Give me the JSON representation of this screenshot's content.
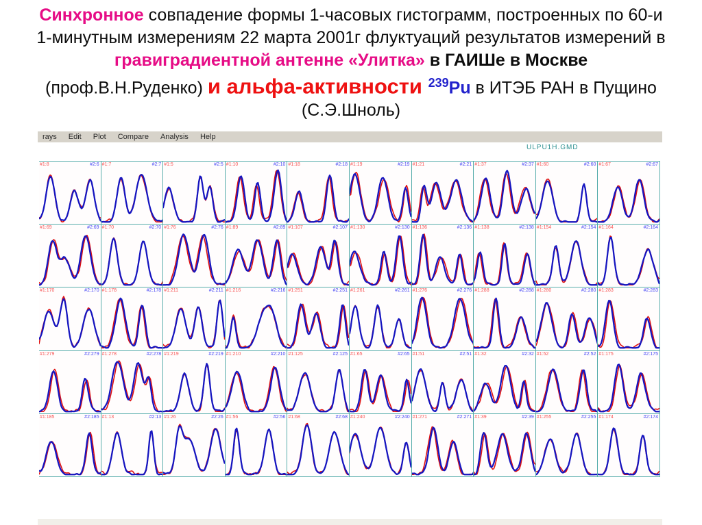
{
  "slide": {
    "title": {
      "seg_sync": "Синхронное",
      "seg_main1": " совпадение формы 1-часовых гистограмм, построенных по 60-и 1-минутным измерениям 22 марта 2001г флуктуаций результатов измерений в ",
      "seg_antenna": "гравиградиентной антенне «Улитка»",
      "seg_gaish": " в ГАИШе в Москве ",
      "seg_prof": "(проф.В.Н.Руденко) ",
      "seg_alpha": "и альфа-активности ",
      "seg_isotope_sup": "239",
      "seg_isotope": "Pu",
      "seg_iteb": " в ИТЭБ РАН в Пущино (С.Э.Шноль)"
    }
  },
  "app_window": {
    "menu_items": [
      "rays",
      "Edit",
      "Plot",
      "Compare",
      "Analysis",
      "Help"
    ],
    "file_label": "ULPU1H.GMD"
  },
  "histogram_grid": {
    "rows": 5,
    "cols": 10,
    "series": [
      {
        "name": "#1",
        "color": "#e01010",
        "meaning": "red curve"
      },
      {
        "name": "#2",
        "color": "#1515c0",
        "meaning": "blue curve"
      }
    ],
    "panels": [
      {
        "red": "#1:8",
        "blue": "#2:6"
      },
      {
        "red": "#1:7",
        "blue": "#2:7"
      },
      {
        "red": "#1:5",
        "blue": "#2:5"
      },
      {
        "red": "#1:10",
        "blue": "#2:10"
      },
      {
        "red": "#1:18",
        "blue": "#2:18"
      },
      {
        "red": "#1:19",
        "blue": "#2:19"
      },
      {
        "red": "#1:21",
        "blue": "#2:21"
      },
      {
        "red": "#1:37",
        "blue": "#2:37"
      },
      {
        "red": "#1:60",
        "blue": "#2:60"
      },
      {
        "red": "#1:67",
        "blue": "#2:67"
      },
      {
        "red": "#1:69",
        "blue": "#2:69"
      },
      {
        "red": "#1:70",
        "blue": "#2:70"
      },
      {
        "red": "#1:76",
        "blue": "#2:76"
      },
      {
        "red": "#1:89",
        "blue": "#2:89"
      },
      {
        "red": "#1:107",
        "blue": "#2:107"
      },
      {
        "red": "#1:130",
        "blue": "#2:130"
      },
      {
        "red": "#1:136",
        "blue": "#2:136"
      },
      {
        "red": "#1:138",
        "blue": "#2:138"
      },
      {
        "red": "#1:154",
        "blue": "#2:154"
      },
      {
        "red": "#1:164",
        "blue": "#2:164"
      },
      {
        "red": "#1:170",
        "blue": "#2:170"
      },
      {
        "red": "#1:178",
        "blue": "#2:178"
      },
      {
        "red": "#1:211",
        "blue": "#2:211"
      },
      {
        "red": "#1:216",
        "blue": "#2:216"
      },
      {
        "red": "#1:251",
        "blue": "#2:251"
      },
      {
        "red": "#1:261",
        "blue": "#2:261"
      },
      {
        "red": "#1:276",
        "blue": "#2:276"
      },
      {
        "red": "#1:288",
        "blue": "#2:288"
      },
      {
        "red": "#1:280",
        "blue": "#2:280"
      },
      {
        "red": "#1:283",
        "blue": "#2:283"
      },
      {
        "red": "#1:279",
        "blue": "#2:279"
      },
      {
        "red": "#1:278",
        "blue": "#2:278"
      },
      {
        "red": "#1:219",
        "blue": "#2:219"
      },
      {
        "red": "#1:210",
        "blue": "#2:210"
      },
      {
        "red": "#1:125",
        "blue": "#2:125"
      },
      {
        "red": "#1:65",
        "blue": "#2:65"
      },
      {
        "red": "#1:51",
        "blue": "#2:51"
      },
      {
        "red": "#1:32",
        "blue": "#2:32"
      },
      {
        "red": "#1:52",
        "blue": "#2:52"
      },
      {
        "red": "#1:175",
        "blue": "#2:175"
      },
      {
        "red": "#1:185",
        "blue": "#2:185"
      },
      {
        "red": "#1:13",
        "blue": "#2:13"
      },
      {
        "red": "#1:26",
        "blue": "#2:26"
      },
      {
        "red": "#1:56",
        "blue": "#2:56"
      },
      {
        "red": "#1:68",
        "blue": "#2:68"
      },
      {
        "red": "#1:240",
        "blue": "#2:240"
      },
      {
        "red": "#1:271",
        "blue": "#2:271"
      },
      {
        "red": "#1:39",
        "blue": "#2:39"
      },
      {
        "red": "#1:255",
        "blue": "#2:255"
      },
      {
        "red": "#1:174",
        "blue": "#2:174"
      }
    ]
  },
  "colors": {
    "title_pink": "#e60c86",
    "title_red": "#ee1111",
    "title_blue": "#2222cc",
    "curve_red": "#e01010",
    "curve_blue": "#1515c0",
    "grid_teal": "#55acaa",
    "menu_bar_bg": "#d7d3ca",
    "panel_label_red": "#f75454",
    "panel_label_blue": "#4646f5",
    "file_label_teal": "#2a8f8f"
  }
}
